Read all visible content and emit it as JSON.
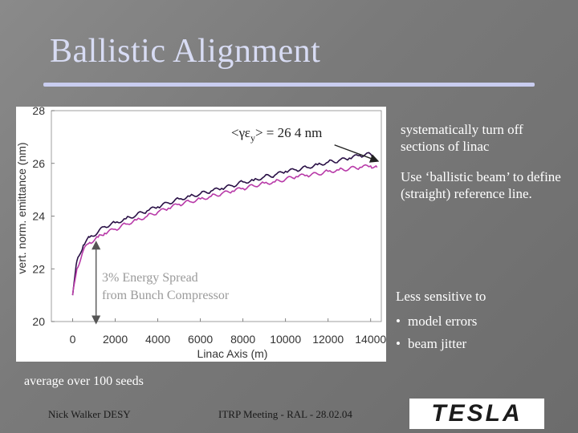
{
  "slide": {
    "title": "Ballistic Alignment",
    "notes": [
      "systematically turn off sections of linac",
      "Use ‘ballistic beam’ to define (straight) reference line.",
      "Less sensitive to"
    ],
    "bullets": [
      "model errors",
      "beam jitter"
    ],
    "footnote": "average over 100 seeds",
    "footer_left": "Nick Walker DESY",
    "footer_mid": "ITRP Meeting - RAL - 28.02.04",
    "logo_text": "TESLA"
  },
  "chart_data": {
    "type": "line",
    "xlabel": "Linac Axis (m)",
    "ylabel": "vert. norm. emittance (nm)",
    "xlim": [
      -1000,
      14500
    ],
    "ylim": [
      20,
      28
    ],
    "x_ticks": [
      0,
      2000,
      4000,
      6000,
      8000,
      10000,
      12000,
      14000
    ],
    "y_ticks": [
      20,
      22,
      24,
      26,
      28
    ],
    "annotation_label": "<γε",
    "annotation_sub": "y",
    "annotation_value": "> = 26  4 nm",
    "spread_label_line1": "3% Energy Spread",
    "spread_label_line2": "from Bunch Compressor",
    "spread_arrow": {
      "x": 1100,
      "y_from": 20,
      "y_to": 22.9
    },
    "annotation_arrow": {
      "from": [
        12300,
        26.7
      ],
      "to": [
        14300,
        26.1
      ]
    },
    "grid": false,
    "series": [
      {
        "color": "#2a1046",
        "x": [
          0,
          200,
          500,
          800,
          1200,
          1500,
          2000,
          2500,
          3000,
          3500,
          4000,
          4500,
          5000,
          5500,
          6000,
          6500,
          7000,
          7500,
          8000,
          8500,
          9000,
          9500,
          10000,
          10500,
          11000,
          11500,
          12000,
          12500,
          13000,
          13500,
          14000,
          14300
        ],
        "y": [
          21.0,
          22.3,
          22.9,
          23.2,
          23.4,
          23.6,
          23.75,
          23.9,
          24.05,
          24.2,
          24.35,
          24.5,
          24.65,
          24.75,
          24.85,
          24.95,
          25.05,
          25.15,
          25.3,
          25.35,
          25.5,
          25.55,
          25.7,
          25.75,
          25.85,
          25.95,
          26.05,
          26.1,
          26.2,
          26.3,
          26.35,
          26.1
        ]
      },
      {
        "color": "#b83aa8",
        "x": [
          0,
          200,
          500,
          800,
          1200,
          1500,
          2000,
          2500,
          3000,
          3500,
          4000,
          4500,
          5000,
          5500,
          6000,
          6500,
          7000,
          7500,
          8000,
          8500,
          9000,
          9500,
          10000,
          10500,
          11000,
          11500,
          12000,
          12500,
          13000,
          13500,
          14000,
          14300
        ],
        "y": [
          21.0,
          22.0,
          22.7,
          23.0,
          23.2,
          23.35,
          23.5,
          23.7,
          23.85,
          24.0,
          24.15,
          24.3,
          24.45,
          24.55,
          24.65,
          24.75,
          24.85,
          24.95,
          25.05,
          25.15,
          25.25,
          25.3,
          25.4,
          25.5,
          25.55,
          25.6,
          25.7,
          25.75,
          25.8,
          25.85,
          25.9,
          25.85
        ]
      }
    ]
  }
}
